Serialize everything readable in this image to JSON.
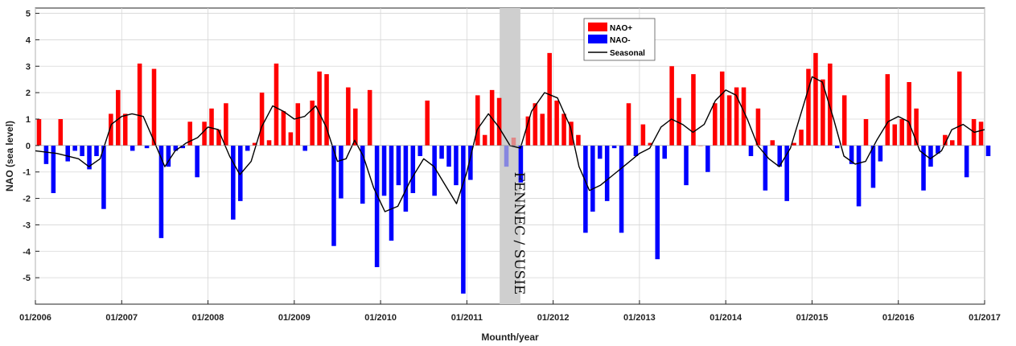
{
  "chart_data": {
    "type": "bar",
    "title": "",
    "xlabel": "Mounth/year",
    "ylabel": "NAO (sea level)",
    "ylim": [
      -6,
      5.2
    ],
    "yticks": [
      -5,
      -4,
      -3,
      -2,
      -1,
      0,
      1,
      2,
      3,
      4,
      5
    ],
    "xlim": [
      2006,
      2017
    ],
    "xticks": [
      {
        "value": 2006,
        "label": "01/2006"
      },
      {
        "value": 2007,
        "label": "01/2007"
      },
      {
        "value": 2008,
        "label": "01/2008"
      },
      {
        "value": 2009,
        "label": "01/2009"
      },
      {
        "value": 2010,
        "label": "01/2010"
      },
      {
        "value": 2011,
        "label": "01/2011"
      },
      {
        "value": 2012,
        "label": "01/2012"
      },
      {
        "value": 2013,
        "label": "01/2013"
      },
      {
        "value": 2014,
        "label": "01/2014"
      },
      {
        "value": 2015,
        "label": "01/2015"
      },
      {
        "value": 2016,
        "label": "01/2016"
      },
      {
        "value": 2017,
        "label": "01/2017"
      }
    ],
    "start": "01/2006",
    "grid": true,
    "legend": {
      "position": "top-center",
      "entries": [
        {
          "label": "NAO+",
          "color": "#ff0000",
          "kind": "bar"
        },
        {
          "label": "NAO-",
          "color": "#0000ff",
          "kind": "bar"
        },
        {
          "label": "Seasonal",
          "color": "#000000",
          "kind": "line"
        }
      ]
    },
    "colors": {
      "positive": "#ff0000",
      "negative": "#0000ff",
      "seasonal": "#000000",
      "shade": "#cfcfcf"
    },
    "annotation": {
      "text": "FENNEC / SUSIE",
      "from": 2011.38,
      "to": 2011.62
    },
    "values": [
      1.0,
      -0.7,
      -1.8,
      1.0,
      -0.6,
      -0.2,
      -0.4,
      -0.9,
      -0.4,
      -2.4,
      1.2,
      2.1,
      1.2,
      -0.2,
      3.1,
      -0.1,
      2.9,
      -3.5,
      -0.8,
      -0.2,
      -0.1,
      0.9,
      -1.2,
      0.9,
      1.4,
      0.6,
      1.6,
      -2.8,
      -2.1,
      -0.2,
      0.1,
      2.0,
      0.2,
      3.1,
      1.3,
      0.5,
      1.6,
      -0.2,
      1.7,
      2.8,
      2.7,
      -3.8,
      -2.0,
      2.2,
      1.4,
      -2.2,
      2.1,
      -4.6,
      -1.9,
      -3.6,
      -1.5,
      -2.5,
      -1.8,
      -0.4,
      1.7,
      -1.9,
      -0.5,
      -0.8,
      -1.5,
      -5.6,
      -1.3,
      1.9,
      0.4,
      2.1,
      1.8,
      -0.8,
      0.3,
      -1.4,
      1.1,
      1.6,
      1.2,
      3.5,
      1.7,
      1.2,
      0.9,
      0.4,
      -3.3,
      -2.5,
      -0.5,
      -2.1,
      -0.1,
      -3.3,
      1.6,
      -0.4,
      0.8,
      0.1,
      -4.3,
      -0.5,
      3.0,
      1.8,
      -1.5,
      2.7,
      0.0,
      -1.0,
      1.6,
      2.8,
      1.9,
      2.2,
      2.2,
      -0.4,
      1.4,
      -1.7,
      0.2,
      -0.8,
      -2.1,
      0.1,
      0.6,
      2.9,
      3.5,
      2.5,
      3.1,
      -0.1,
      1.9,
      -0.7,
      -2.3,
      1.0,
      -1.6,
      -0.6,
      2.7,
      0.8,
      1.0,
      2.4,
      1.4,
      -1.7,
      -0.8,
      -0.3,
      0.4,
      0.2,
      2.8,
      -1.2,
      1.0,
      0.9,
      -0.4
    ],
    "seasonal": [
      [
        2006.0,
        -0.2
      ],
      [
        2006.25,
        -0.3
      ],
      [
        2006.5,
        -0.5
      ],
      [
        2006.62,
        -0.8
      ],
      [
        2006.75,
        -0.5
      ],
      [
        2006.88,
        0.8
      ],
      [
        2007.0,
        1.1
      ],
      [
        2007.12,
        1.2
      ],
      [
        2007.25,
        1.1
      ],
      [
        2007.37,
        0.2
      ],
      [
        2007.5,
        -0.8
      ],
      [
        2007.62,
        -0.2
      ],
      [
        2007.75,
        0.1
      ],
      [
        2007.88,
        0.3
      ],
      [
        2008.0,
        0.7
      ],
      [
        2008.12,
        0.6
      ],
      [
        2008.25,
        -0.4
      ],
      [
        2008.37,
        -1.1
      ],
      [
        2008.5,
        -0.6
      ],
      [
        2008.62,
        0.7
      ],
      [
        2008.75,
        1.5
      ],
      [
        2008.87,
        1.3
      ],
      [
        2009.0,
        1.0
      ],
      [
        2009.12,
        1.1
      ],
      [
        2009.25,
        1.5
      ],
      [
        2009.37,
        0.7
      ],
      [
        2009.5,
        -0.6
      ],
      [
        2009.6,
        -0.5
      ],
      [
        2009.7,
        0.2
      ],
      [
        2009.8,
        -0.4
      ],
      [
        2009.92,
        -1.6
      ],
      [
        2010.05,
        -2.5
      ],
      [
        2010.2,
        -2.3
      ],
      [
        2010.35,
        -1.3
      ],
      [
        2010.5,
        -0.5
      ],
      [
        2010.62,
        -0.8
      ],
      [
        2010.75,
        -1.5
      ],
      [
        2010.88,
        -2.2
      ],
      [
        2011.0,
        -1.0
      ],
      [
        2011.12,
        0.6
      ],
      [
        2011.25,
        1.2
      ],
      [
        2011.37,
        0.7
      ],
      [
        2011.5,
        0.0
      ],
      [
        2011.62,
        -0.1
      ],
      [
        2011.75,
        1.3
      ],
      [
        2011.9,
        2.0
      ],
      [
        2012.05,
        1.8
      ],
      [
        2012.2,
        0.7
      ],
      [
        2012.3,
        -0.8
      ],
      [
        2012.42,
        -1.7
      ],
      [
        2012.55,
        -1.5
      ],
      [
        2012.7,
        -1.1
      ],
      [
        2012.85,
        -0.7
      ],
      [
        2013.0,
        -0.3
      ],
      [
        2013.12,
        -0.1
      ],
      [
        2013.25,
        0.7
      ],
      [
        2013.37,
        1.0
      ],
      [
        2013.5,
        0.8
      ],
      [
        2013.62,
        0.5
      ],
      [
        2013.75,
        0.8
      ],
      [
        2013.88,
        1.7
      ],
      [
        2014.0,
        2.1
      ],
      [
        2014.12,
        1.9
      ],
      [
        2014.25,
        1.0
      ],
      [
        2014.37,
        0.0
      ],
      [
        2014.5,
        -0.5
      ],
      [
        2014.62,
        -0.8
      ],
      [
        2014.75,
        -0.1
      ],
      [
        2014.88,
        1.3
      ],
      [
        2015.0,
        2.6
      ],
      [
        2015.12,
        2.4
      ],
      [
        2015.25,
        1.0
      ],
      [
        2015.37,
        -0.4
      ],
      [
        2015.5,
        -0.7
      ],
      [
        2015.62,
        -0.6
      ],
      [
        2015.75,
        0.2
      ],
      [
        2015.88,
        0.9
      ],
      [
        2016.0,
        1.1
      ],
      [
        2016.12,
        0.9
      ],
      [
        2016.25,
        -0.2
      ],
      [
        2016.37,
        -0.5
      ],
      [
        2016.5,
        -0.2
      ],
      [
        2016.62,
        0.6
      ],
      [
        2016.75,
        0.8
      ],
      [
        2016.88,
        0.5
      ],
      [
        2017.0,
        0.6
      ]
    ]
  }
}
